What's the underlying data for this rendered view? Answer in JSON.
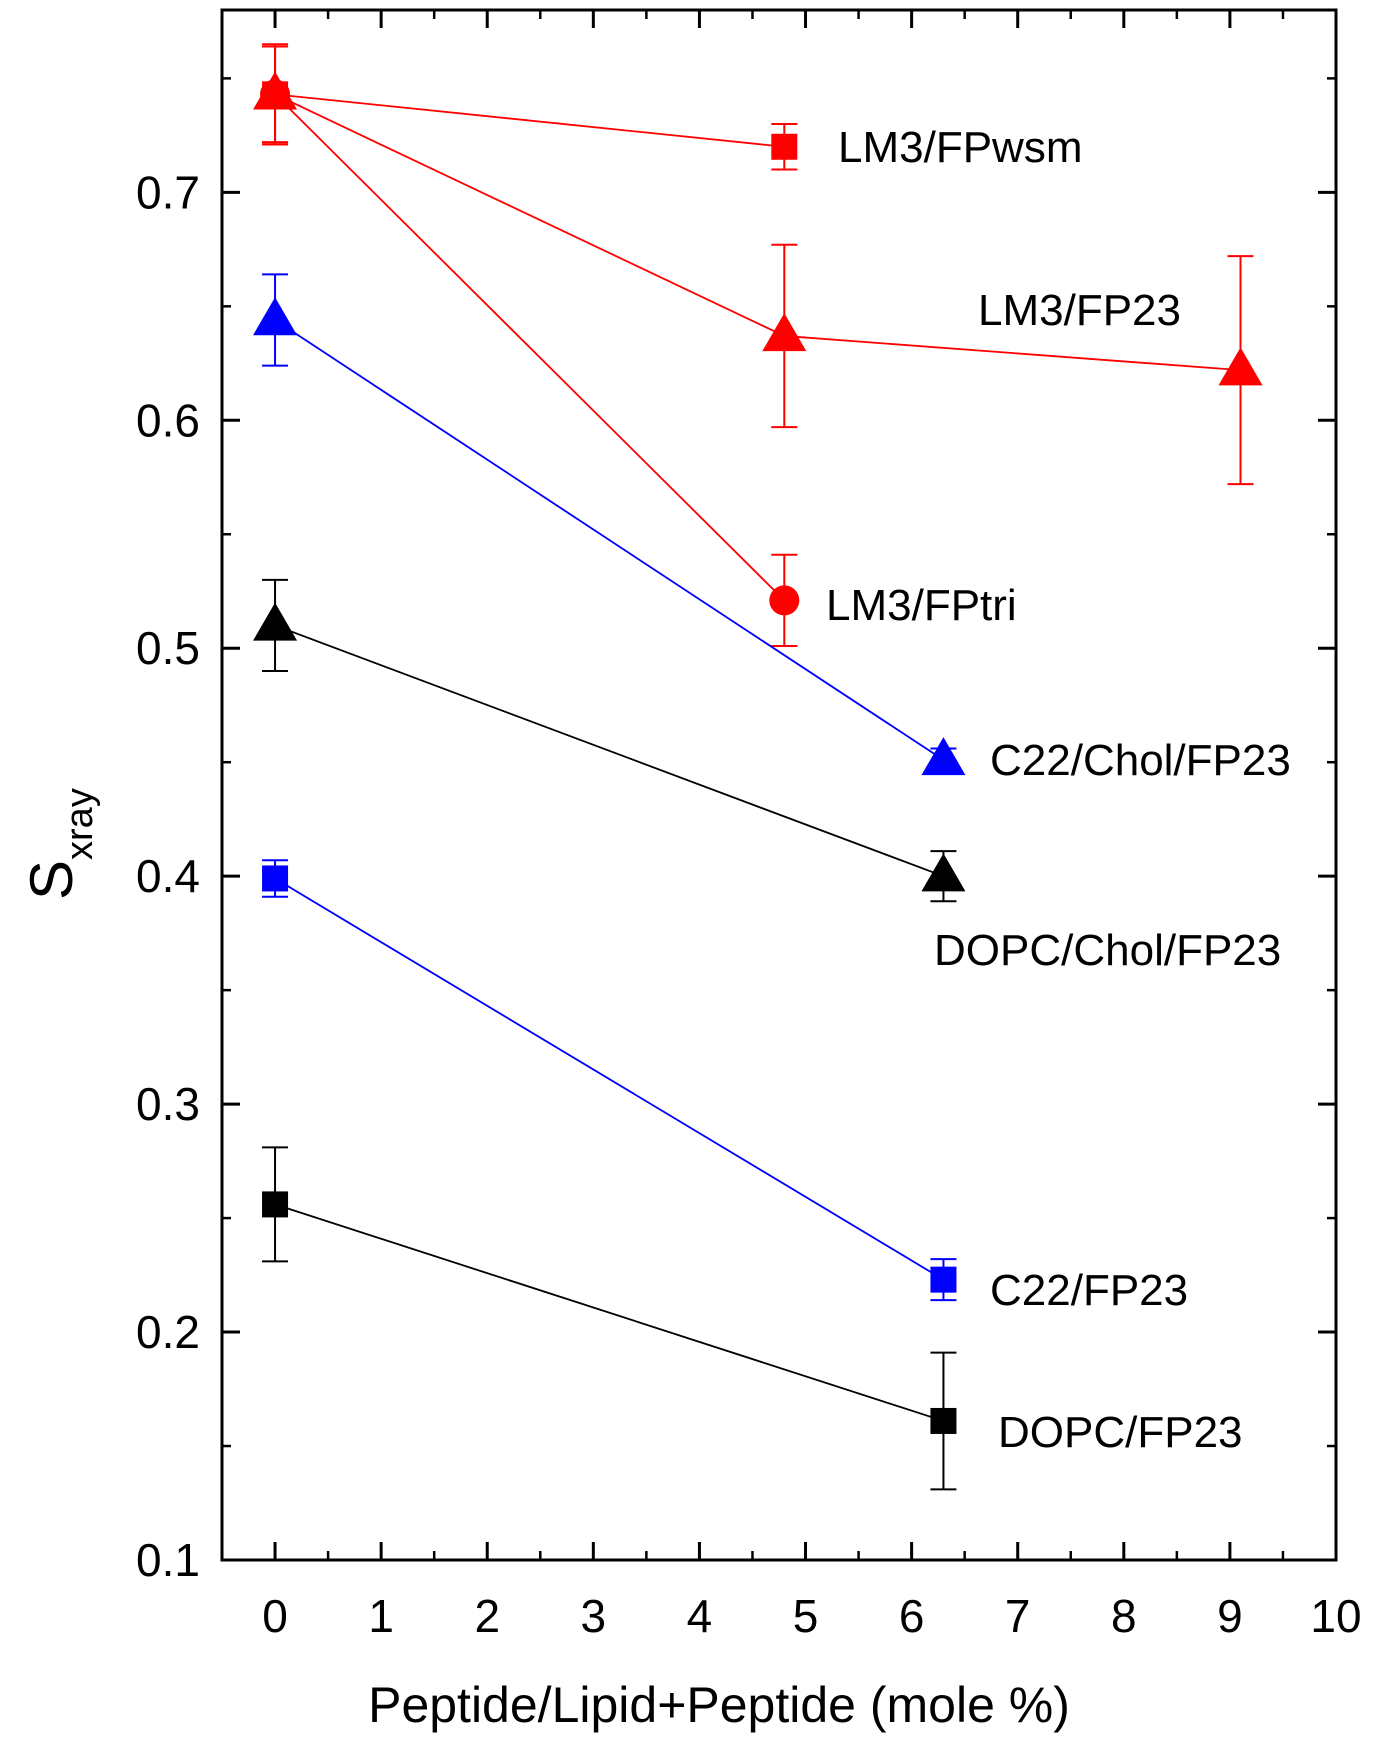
{
  "chart_data": {
    "type": "scatter",
    "title": "",
    "xlabel": "Peptide/Lipid+Peptide (mole %)",
    "ylabel": {
      "main": "S",
      "sub": "xray"
    },
    "xlim": [
      -0.5,
      10
    ],
    "ylim": [
      0.1,
      0.78
    ],
    "xticks": [
      0,
      1,
      2,
      3,
      4,
      5,
      6,
      7,
      8,
      9,
      10
    ],
    "xtick_labels": [
      "0",
      "1",
      "2",
      "3",
      "4",
      "5",
      "6",
      "7",
      "8",
      "9",
      "10"
    ],
    "yticks": [
      0.1,
      0.2,
      0.3,
      0.4,
      0.5,
      0.6,
      0.7
    ],
    "ytick_labels": [
      "0.1",
      "0.2",
      "0.3",
      "0.4",
      "0.5",
      "0.6",
      "0.7"
    ],
    "grid": false,
    "legend": "none (labels placed next to series endpoints)",
    "series": [
      {
        "name": "LM3/FPwsm",
        "color": "#ff0000",
        "marker": "square",
        "x": [
          0,
          4.8
        ],
        "y": [
          0.743,
          0.72
        ],
        "yerr": [
          0.022,
          0.01
        ]
      },
      {
        "name": "LM3/FP23",
        "color": "#ff0000",
        "marker": "triangle",
        "x": [
          0,
          4.8,
          9.1
        ],
        "y": [
          0.743,
          0.637,
          0.622
        ],
        "yerr": [
          0.021,
          0.04,
          0.05
        ]
      },
      {
        "name": "LM3/FPtri",
        "color": "#ff0000",
        "marker": "circle",
        "x": [
          0,
          4.8
        ],
        "y": [
          0.743,
          0.521
        ],
        "yerr": [
          0.021,
          0.02
        ]
      },
      {
        "name": "C22/Chol/FP23",
        "color": "#0000ff",
        "marker": "triangle",
        "x": [
          0,
          6.3
        ],
        "y": [
          0.644,
          0.451
        ],
        "yerr": [
          0.02,
          0.005
        ]
      },
      {
        "name": "DOPC/Chol/FP23",
        "color": "#000000",
        "marker": "triangle",
        "x": [
          0,
          6.3
        ],
        "y": [
          0.51,
          0.4
        ],
        "yerr": [
          0.02,
          0.011
        ]
      },
      {
        "name": "C22/FP23",
        "color": "#0000ff",
        "marker": "square",
        "x": [
          0,
          6.3
        ],
        "y": [
          0.399,
          0.223
        ],
        "yerr": [
          0.008,
          0.009
        ]
      },
      {
        "name": "DOPC/FP23",
        "color": "#000000",
        "marker": "square",
        "x": [
          0,
          6.3
        ],
        "y": [
          0.256,
          0.161
        ],
        "yerr": [
          0.025,
          0.03
        ]
      }
    ]
  }
}
